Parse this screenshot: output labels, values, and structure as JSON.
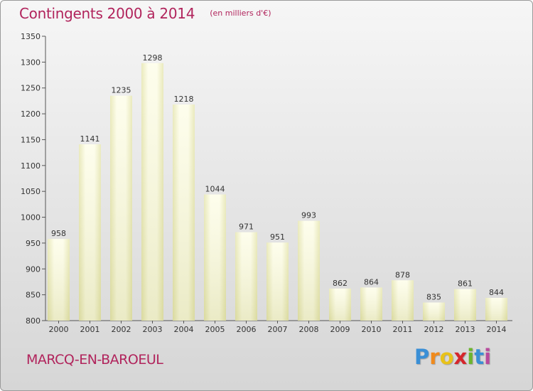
{
  "header": {
    "title": "Contingents 2000 à 2014",
    "subtitle": "(en milliers d'€)"
  },
  "footer": {
    "commune": "MARCQ-EN-BAROEUL",
    "logo_letters": [
      "P",
      "r",
      "o",
      "x",
      "i",
      "t",
      "i"
    ],
    "logo_colors": [
      "#3a8fd6",
      "#f08a1c",
      "#e8c21a",
      "#d5262c",
      "#6cb52e",
      "#3a8fd6",
      "#b84a9d"
    ]
  },
  "colors": {
    "accent": "#b1245c",
    "bar_light": "#fdfde6",
    "bar_dark": "#e3e3a8"
  },
  "chart_data": {
    "type": "bar",
    "title": "Contingents 2000 à 2014",
    "subtitle": "(en milliers d'€)",
    "categories": [
      "2000",
      "2001",
      "2002",
      "2003",
      "2004",
      "2005",
      "2006",
      "2007",
      "2008",
      "2009",
      "2010",
      "2011",
      "2012",
      "2013",
      "2014"
    ],
    "values": [
      958,
      1141,
      1235,
      1298,
      1218,
      1044,
      971,
      951,
      993,
      862,
      864,
      878,
      835,
      861,
      844
    ],
    "ylim": [
      800,
      1350
    ],
    "yticks": [
      800,
      850,
      900,
      950,
      1000,
      1050,
      1100,
      1150,
      1200,
      1250,
      1300,
      1350
    ],
    "xlabel": "",
    "ylabel": "",
    "grid": false,
    "legend": "none"
  }
}
